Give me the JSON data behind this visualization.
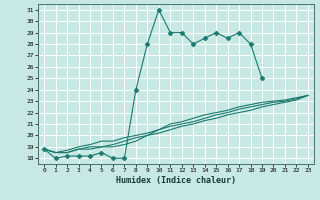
{
  "title": "",
  "xlabel": "Humidex (Indice chaleur)",
  "xlim": [
    -0.5,
    23.5
  ],
  "ylim": [
    17.5,
    31.5
  ],
  "yticks": [
    18,
    19,
    20,
    21,
    22,
    23,
    24,
    25,
    26,
    27,
    28,
    29,
    30,
    31
  ],
  "xticks": [
    0,
    1,
    2,
    3,
    4,
    5,
    6,
    7,
    8,
    9,
    10,
    11,
    12,
    13,
    14,
    15,
    16,
    17,
    18,
    19,
    20,
    21,
    22,
    23
  ],
  "bg_color": "#c8e8e4",
  "plot_bg": "#c8e8e4",
  "line_color": "#1a7a6e",
  "grid_color": "#ffffff",
  "series": [
    [
      18.8,
      18.0,
      18.2,
      18.2,
      18.2,
      18.5,
      18.0,
      18.0,
      24.0,
      28.0,
      31.0,
      29.0,
      29.0,
      28.0,
      28.5,
      29.0,
      28.5,
      29.0,
      28.0,
      25.0,
      null,
      null,
      null,
      null
    ],
    [
      18.8,
      18.5,
      18.5,
      18.8,
      18.8,
      19.0,
      19.0,
      19.2,
      19.5,
      20.0,
      20.5,
      21.0,
      21.2,
      21.5,
      21.8,
      22.0,
      22.2,
      22.5,
      22.7,
      22.9,
      23.0,
      23.1,
      23.3,
      23.5
    ],
    [
      18.8,
      18.5,
      18.7,
      19.0,
      19.2,
      19.5,
      19.5,
      19.8,
      20.0,
      20.2,
      20.5,
      20.8,
      21.0,
      21.2,
      21.5,
      21.8,
      22.0,
      22.3,
      22.5,
      22.7,
      22.9,
      23.0,
      23.2,
      23.5
    ],
    [
      18.8,
      18.5,
      18.5,
      18.8,
      19.0,
      19.0,
      19.2,
      19.5,
      19.8,
      20.0,
      20.2,
      20.5,
      20.8,
      21.0,
      21.3,
      21.5,
      21.8,
      22.0,
      22.2,
      22.5,
      22.7,
      22.9,
      23.1,
      23.5
    ]
  ],
  "marker_series": 0,
  "marker_style": "D",
  "marker_size": 2.5
}
